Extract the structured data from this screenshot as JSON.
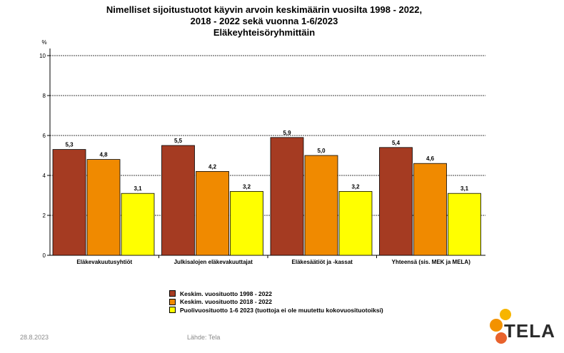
{
  "title_lines": [
    "Nimelliset sijoitustuotot käyvin arvoin keskimäärin vuosilta 1998 - 2022,",
    "2018 - 2022 sekä vuonna 1-6/2023",
    "Eläkeyhteisöryhmittäin"
  ],
  "footer": {
    "date": "28.8.2023",
    "source": "Lähde: Tela"
  },
  "logo": {
    "text": "TELA",
    "colors": [
      "#f7b500",
      "#f39200",
      "#e8622c"
    ]
  },
  "chart_data": {
    "type": "bar",
    "title": "Nimelliset sijoitustuotot käyvin arvoin keskimäärin vuosilta 1998 - 2022, 2018 - 2022 sekä vuonna 1-6/2023 Eläkeyhteisöryhmittäin",
    "ylabel": "%",
    "ylim": [
      0,
      10
    ],
    "yticks": [
      0,
      2,
      4,
      6,
      8,
      10
    ],
    "grid": true,
    "legend_position": "bottom",
    "categories": [
      "Eläkevakuutusyhtiöt",
      "Julkisalojen eläkevakuuttajat",
      "Eläkesäätiöt ja -kassat",
      "Yhteensä (sis. MEK ja MELA)"
    ],
    "series": [
      {
        "name": "Keskim. vuosituotto 1998 - 2022",
        "color": "#a53b22",
        "values": [
          5.3,
          5.5,
          5.9,
          5.4
        ],
        "labels": [
          "5,3",
          "5,5",
          "5,9",
          "5,4"
        ]
      },
      {
        "name": "Keskim. vuosituotto 2018 - 2022",
        "color": "#f08a00",
        "values": [
          4.8,
          4.2,
          5.0,
          4.6
        ],
        "labels": [
          "4,8",
          "4,2",
          "5,0",
          "4,6"
        ]
      },
      {
        "name": "Puolivuosituotto 1-6 2023 (tuottoja ei ole muutettu kokovuosituotoiksi)",
        "color": "#ffff00",
        "values": [
          3.1,
          3.2,
          3.2,
          3.1
        ],
        "labels": [
          "3,1",
          "3,2",
          "3,2",
          "3,1"
        ]
      }
    ]
  }
}
